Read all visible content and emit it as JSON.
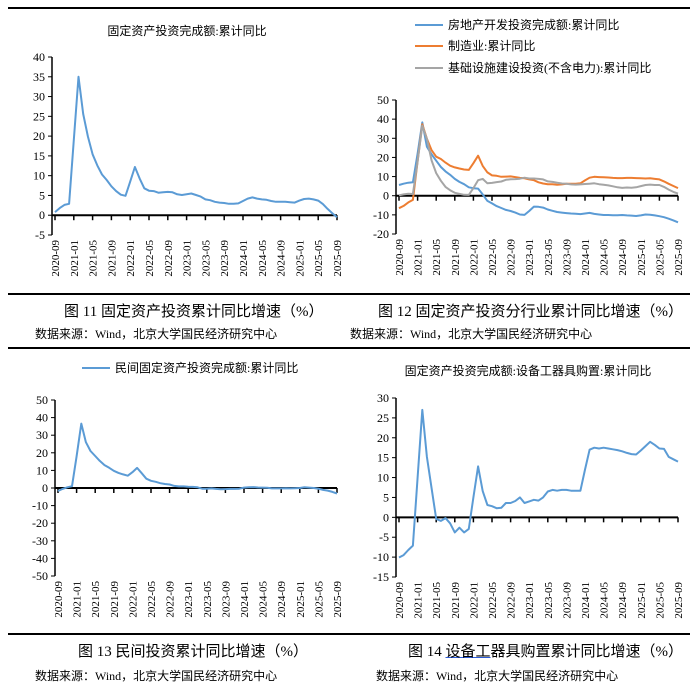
{
  "source_text": "数据来源：Wind，北京大学国民经济研究中心",
  "x_tick_labels": [
    "2020-09",
    "2021-01",
    "2021-05",
    "2021-09",
    "2022-01",
    "2022-05",
    "2022-09",
    "2023-01",
    "2023-05",
    "2023-09",
    "2024-01",
    "2024-05",
    "2024-09",
    "2025-01",
    "2025-05",
    "2025-09"
  ],
  "chart_data": [
    {
      "type": "line",
      "title": "固定资产投资完成额:累计同比",
      "caption": "图 11  固定资产投资累计同比增速（%）",
      "ylim": [
        -5,
        40
      ],
      "ystep": 5,
      "x_start": "2020-09",
      "x_end": "2025-09",
      "frequency": "monthly",
      "series": [
        {
          "name": "固定资产投资完成额:累计同比",
          "color": "#5B9BD5",
          "values": [
            0.8,
            1.8,
            2.6,
            2.9,
            19,
            35.0,
            25.6,
            19.9,
            15.4,
            12.6,
            10.3,
            8.9,
            7.3,
            6.1,
            5.2,
            4.9,
            8.5,
            12.2,
            9.3,
            6.8,
            6.2,
            6.1,
            5.7,
            5.8,
            5.9,
            5.8,
            5.3,
            5.1,
            5.3,
            5.5,
            5.1,
            4.7,
            4.0,
            3.8,
            3.4,
            3.2,
            3.1,
            2.9,
            2.9,
            3.0,
            3.6,
            4.2,
            4.5,
            4.2,
            4.0,
            3.9,
            3.6,
            3.4,
            3.4,
            3.4,
            3.3,
            3.2,
            3.7,
            4.1,
            4.2,
            4.0,
            3.7,
            2.8,
            1.6,
            0.5,
            -0.5
          ]
        }
      ]
    },
    {
      "type": "line",
      "title": "",
      "caption": "图 12 固定资产投资分行业累计同比增速（%）",
      "ylim": [
        -20,
        50
      ],
      "ystep": 10,
      "legend": "top",
      "x_start": "2020-09",
      "x_end": "2025-09",
      "frequency": "monthly",
      "series": [
        {
          "name": "房地产开发投资完成额:累计同比",
          "color": "#5B9BD5",
          "values": [
            5.6,
            6.3,
            6.8,
            7.0,
            22,
            38.3,
            25.6,
            21.6,
            18.3,
            15.0,
            12.7,
            10.9,
            8.8,
            7.2,
            6.0,
            4.4,
            3.9,
            3.7,
            0.7,
            -2.7,
            -4.0,
            -5.4,
            -6.4,
            -7.4,
            -8.0,
            -8.8,
            -9.8,
            -10.0,
            -8.0,
            -5.7,
            -5.8,
            -6.2,
            -7.2,
            -7.9,
            -8.5,
            -8.8,
            -9.1,
            -9.3,
            -9.4,
            -9.6,
            -9.3,
            -9.0,
            -9.5,
            -9.8,
            -10.1,
            -10.1,
            -10.2,
            -10.2,
            -10.1,
            -10.3,
            -10.4,
            -10.6,
            -10.3,
            -9.8,
            -9.9,
            -10.3,
            -10.7,
            -11.2,
            -12.0,
            -12.9,
            -13.9
          ]
        },
        {
          "name": "制造业:累计同比",
          "color": "#ED7D31",
          "values": [
            -6.5,
            -5.3,
            -3.5,
            -2.2,
            18,
            37.3,
            29.8,
            23.8,
            20.4,
            19.2,
            17.3,
            15.7,
            14.8,
            14.2,
            13.7,
            13.5,
            17,
            20.9,
            15.6,
            12.2,
            10.6,
            10.4,
            9.9,
            10.0,
            10.1,
            9.7,
            9.3,
            9.1,
            8.5,
            8.1,
            7.0,
            6.4,
            6.0,
            6.0,
            5.7,
            5.9,
            6.2,
            6.2,
            6.3,
            6.5,
            8,
            9.4,
            9.9,
            9.7,
            9.6,
            9.5,
            9.3,
            9.2,
            9.2,
            9.3,
            9.3,
            9.2,
            9.1,
            9.0,
            9.1,
            8.8,
            8.5,
            7.5,
            6.2,
            5.1,
            4.0
          ]
        },
        {
          "name": "基础设施建设投资(不含电力):累计同比",
          "color": "#A5A5A5",
          "values": [
            0.2,
            0.7,
            1.0,
            0.9,
            18,
            36.6,
            29.7,
            18.4,
            11.8,
            7.8,
            4.6,
            2.9,
            1.5,
            1.0,
            0.5,
            0.4,
            4,
            8.1,
            8.8,
            6.5,
            6.7,
            7.1,
            7.4,
            8.3,
            8.6,
            8.7,
            8.9,
            9.4,
            9.0,
            9.0,
            8.8,
            8.5,
            7.5,
            7.2,
            6.8,
            6.4,
            6.2,
            5.9,
            5.8,
            5.9,
            6.1,
            6.3,
            6.5,
            6.0,
            5.7,
            5.4,
            4.9,
            4.4,
            4.1,
            4.3,
            4.2,
            4.4,
            5.0,
            5.6,
            5.8,
            5.6,
            5.6,
            4.6,
            3.2,
            2.0,
            1.1
          ]
        }
      ]
    },
    {
      "type": "line",
      "title": "",
      "caption": "图 13  民间投资累计同比增速（%）",
      "ylim": [
        -50,
        50
      ],
      "ystep": 10,
      "legend": "top",
      "x_start": "2020-09",
      "x_end": "2025-09",
      "frequency": "monthly",
      "series": [
        {
          "name": "民间固定资产投资完成额:累计同比",
          "color": "#5B9BD5",
          "values": [
            -1.7,
            -0.5,
            0.4,
            1.0,
            18,
            36.6,
            26.0,
            21.0,
            18.2,
            15.4,
            13.0,
            11.5,
            9.8,
            8.6,
            7.7,
            7.0,
            9,
            11.4,
            8.4,
            5.3,
            4.1,
            3.5,
            2.7,
            2.3,
            2.0,
            1.2,
            0.9,
            0.9,
            0.7,
            0.6,
            0.4,
            -0.4,
            -0.4,
            -0.2,
            -0.5,
            -0.7,
            -0.6,
            -0.5,
            -0.5,
            -0.4,
            0.2,
            0.4,
            0.5,
            0.3,
            0.2,
            0.1,
            -0.2,
            -0.2,
            -0.2,
            -0.1,
            -0.2,
            -0.1,
            0,
            0.4,
            0.2,
            0,
            -0.4,
            -1.1,
            -1.5,
            -2.2,
            -3.1
          ]
        }
      ]
    },
    {
      "type": "line",
      "title": "固定资产投资完成额:设备工器具购置:累计同比",
      "caption_prefix": "图 14 ",
      "caption_link": "设备工",
      "caption_rest": "器具购置累计同比增速（%）",
      "ylim": [
        -15,
        30
      ],
      "ystep": 5,
      "x_start": "2020-09",
      "x_end": "2025-09",
      "frequency": "monthly",
      "series": [
        {
          "name": "固定资产投资完成额:设备工器具购置:累计同比",
          "color": "#5B9BD5",
          "values": [
            -10.1,
            -9.5,
            -8.2,
            -7.1,
            10,
            27.0,
            15.2,
            7.3,
            -0.4,
            -0.9,
            -0.2,
            -1.5,
            -3.8,
            -2.6,
            -3.8,
            -2.9,
            5,
            12.8,
            6.6,
            3.1,
            2.8,
            2.3,
            2.4,
            3.6,
            3.6,
            4.1,
            5.0,
            3.6,
            4.0,
            4.4,
            4.2,
            5.0,
            6.5,
            6.9,
            6.7,
            6.9,
            6.9,
            6.7,
            6.7,
            6.7,
            12,
            17.0,
            17.5,
            17.3,
            17.5,
            17.3,
            17.1,
            16.9,
            16.6,
            16.2,
            15.9,
            15.8,
            16.8,
            17.9,
            19.0,
            18.2,
            17.3,
            17.2,
            15.2,
            14.6,
            14.0
          ]
        }
      ]
    }
  ]
}
